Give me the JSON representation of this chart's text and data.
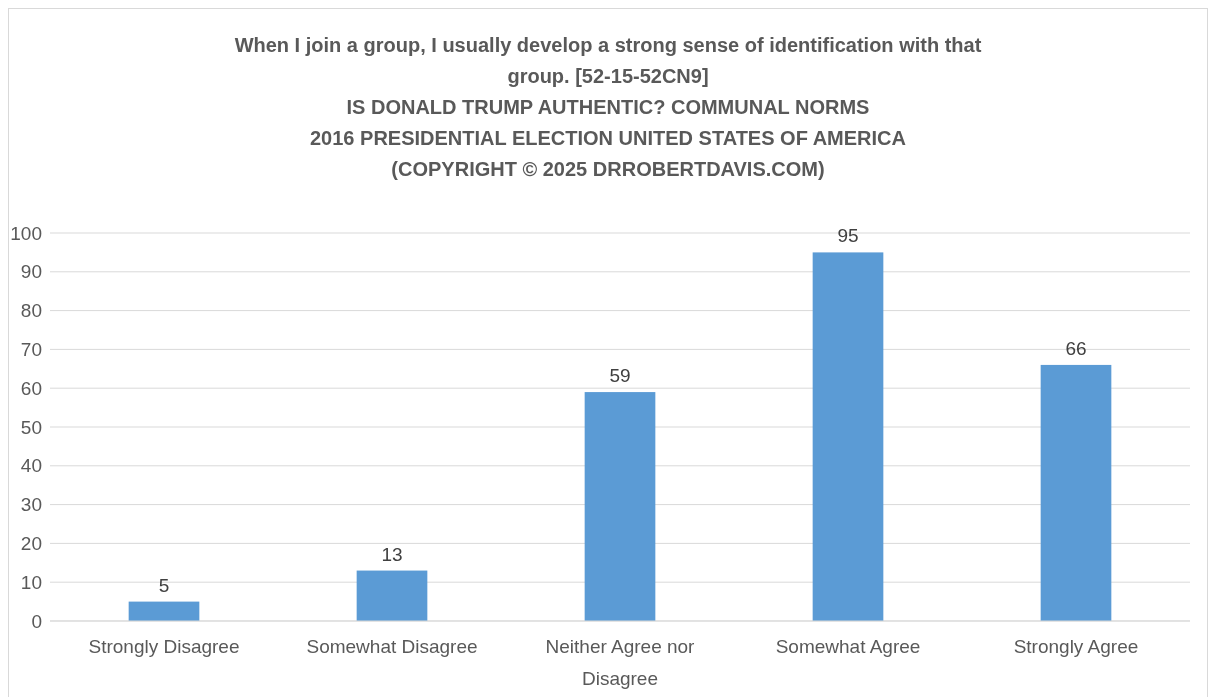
{
  "chart_data": {
    "type": "bar",
    "title": "When I join a group, I usually develop a strong sense of identification with that group. [52-15-52CN9]\nIS DONALD TRUMP AUTHENTIC? COMMUNAL NORMS\n2016 PRESIDENTIAL ELECTION UNITED STATES OF AMERICA\n(COPYRIGHT © 2025 DRROBERTDAVIS.COM)",
    "categories": [
      "Strongly Disagree",
      "Somewhat Disagree",
      "Neither Agree nor Disagree",
      "Somewhat Agree",
      "Strongly Agree"
    ],
    "values": [
      5,
      13,
      59,
      95,
      66
    ],
    "color": "#5b9bd5",
    "ylim": [
      0,
      100
    ],
    "yticks": [
      0,
      10,
      20,
      30,
      40,
      50,
      60,
      70,
      80,
      90,
      100
    ],
    "grid": "y",
    "data_labels": true
  }
}
